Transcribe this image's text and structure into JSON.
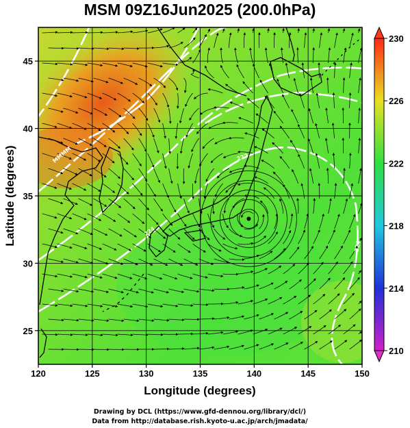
{
  "title": "MSM 09Z16Jun2025 (200.0hPa)",
  "x_axis": {
    "label": "Longitude (degrees)",
    "range": [
      120,
      150
    ],
    "ticks": [
      "120",
      "125",
      "130",
      "135",
      "140",
      "145",
      "150"
    ]
  },
  "y_axis": {
    "label": "Latitude  (degrees)",
    "range": [
      22.5,
      47.5
    ],
    "ticks": [
      "25",
      "30",
      "35",
      "40",
      "45"
    ]
  },
  "colorbar": {
    "range": [
      210,
      230
    ],
    "ticks": [
      "210",
      "214",
      "218",
      "222",
      "226",
      "230"
    ],
    "colors": [
      "#d020c8",
      "#2040e0",
      "#20d0e0",
      "#30e040",
      "#d8e020",
      "#ff3020"
    ]
  },
  "map": {
    "field": "temperature (K) at 200 hPa with streamlines",
    "cyclone_center": {
      "lon": 139.5,
      "lat": 33.3
    },
    "warm_core": {
      "lon": 127,
      "lat": 42,
      "value": 228
    },
    "contour_labels": [
      "MMMM",
      "224",
      "224",
      "222"
    ]
  },
  "credits": {
    "line1": "Drawing by DCL (https://www.gfd-dennou.org/library/dcl/)",
    "line2": "Data from http://database.rish.kyoto-u.ac.jp/arch/jmadata/"
  }
}
